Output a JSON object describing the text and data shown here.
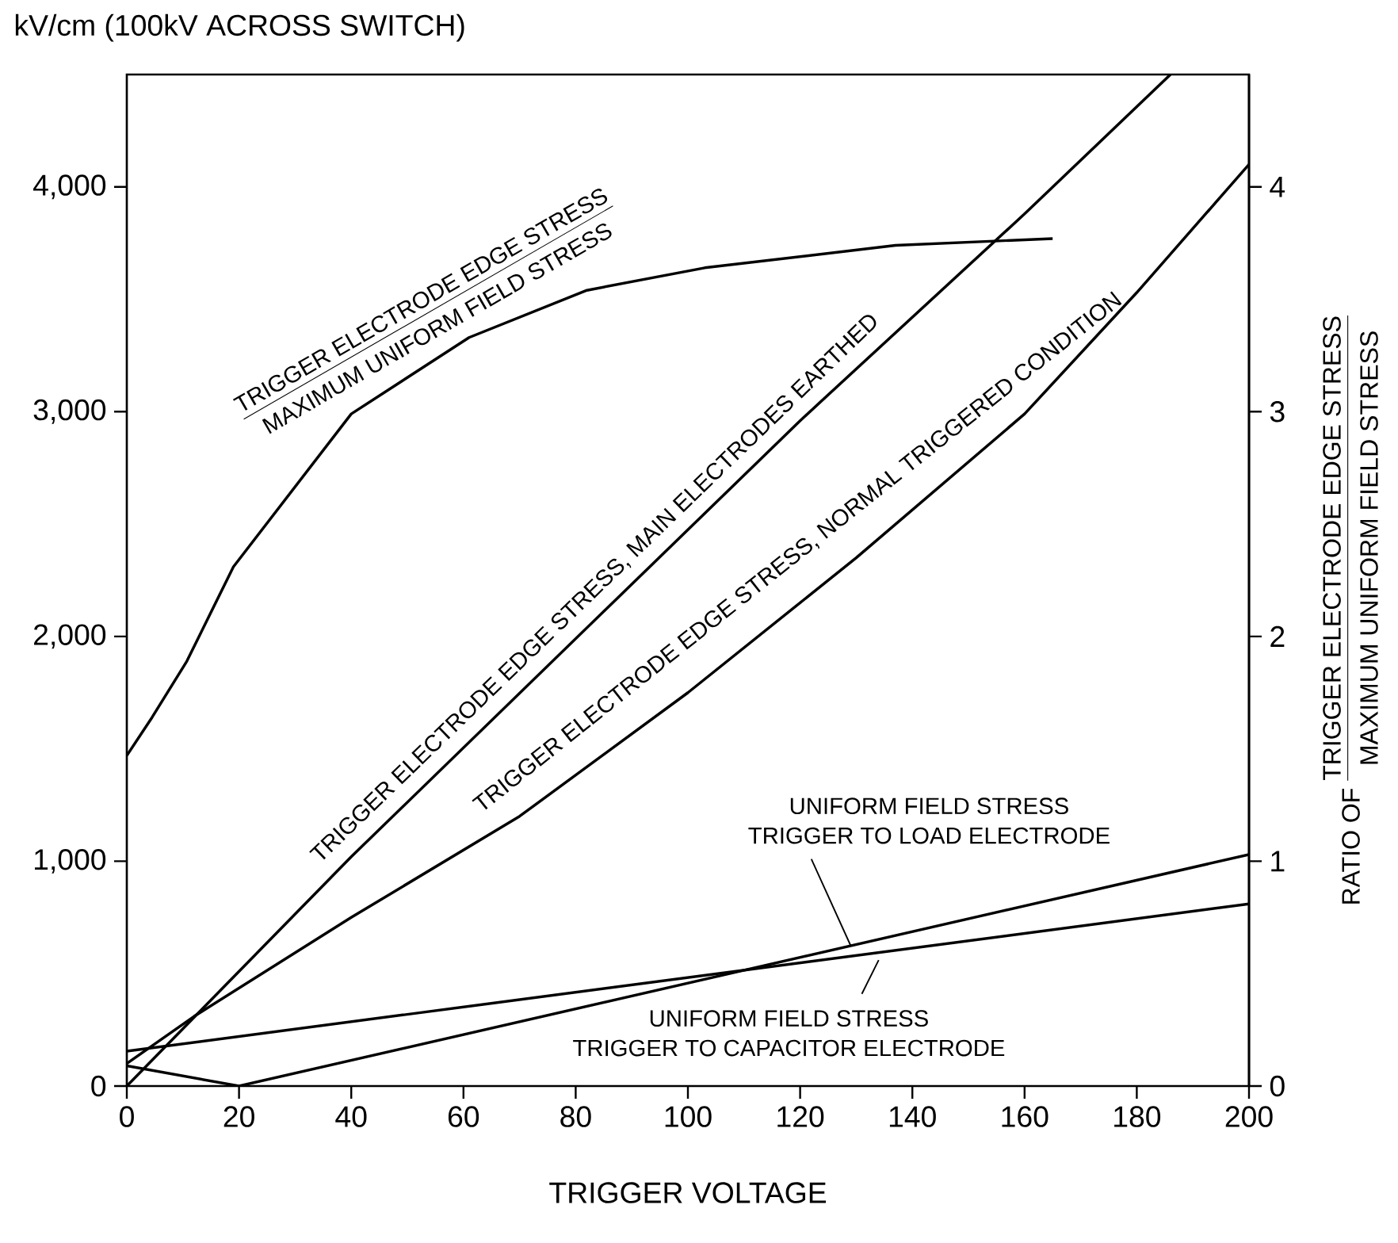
{
  "chart_data": {
    "type": "line",
    "ylabel": "kV/cm (100kV ACROSS SWITCH)",
    "xlabel": "TRIGGER VOLTAGE",
    "y2label": "RATIO OF",
    "annotations": [
      "TRIGGER ELECTRODE EDGE STRESS",
      "MAXIMUM UNIFORM FIELD STRESS",
      "UNIFORM FIELD STRESS",
      {
        "text": "TRIGGER TO LOAD ELECTRODE",
        "x": 129,
        "y": 625
      },
      {
        "text": "UNIFORM FIELD STRESS",
        "x": 134,
        "y": 560
      },
      "TRIGGER TO CAPACITOR ELECTRODE",
      "TRIGGER ELECTRODE EDGE STRESS",
      "MAXIMUM UNIFORM FIELD STRESS"
    ],
    "xlim": [
      0,
      200
    ],
    "xticks": [
      0,
      20,
      40,
      60,
      80,
      100,
      120,
      140,
      160,
      180,
      200
    ],
    "ylim": [
      0,
      4500
    ],
    "yticks": [
      0,
      {
        "value": 1000,
        "label": "1,000"
      },
      {
        "value": 2000,
        "label": "2,000"
      },
      {
        "value": 3000,
        "label": "3,000"
      },
      {
        "value": 4000,
        "label": "4,000"
      }
    ],
    "y2lim": [
      0,
      4.5
    ],
    "y2ticks": [
      0,
      1,
      2,
      3,
      4
    ],
    "grid": false,
    "line_style": "solid",
    "marker": "none",
    "series": [
      {
        "axis": "y2",
        "color": "#000000",
        "x": [
          0,
          4.5,
          10.7,
          19,
          40,
          61,
          82,
          103,
          137,
          165
        ],
        "values": [
          1.47,
          1.64,
          1.89,
          2.31,
          2.99,
          3.33,
          3.54,
          3.64,
          3.74,
          3.77
        ]
      },
      {
        "name": "TRIGGER ELECTRODE EDGE STRESS, MAIN ELECTRODES EARTHED",
        "color": "#000000",
        "x": [
          0,
          40,
          80,
          120,
          160,
          186
        ],
        "values": [
          0,
          1020,
          1990,
          2960,
          3880,
          4500
        ]
      },
      {
        "name": "TRIGGER ELECTRODE EDGE STRESS, NORMAL TRIGGERED CONDITION",
        "color": "#000000",
        "x": [
          0,
          12,
          40,
          70,
          100,
          130,
          160,
          180,
          200
        ],
        "values": [
          100,
          310,
          750,
          1200,
          1750,
          2350,
          2990,
          3530,
          4100
        ]
      },
      {
        "color": "#000000",
        "x": [
          0,
          20,
          200
        ],
        "values": [
          90,
          0,
          1030
        ]
      },
      {
        "color": "#000000",
        "x": [
          0,
          200
        ],
        "values": [
          155,
          810
        ]
      }
    ]
  }
}
